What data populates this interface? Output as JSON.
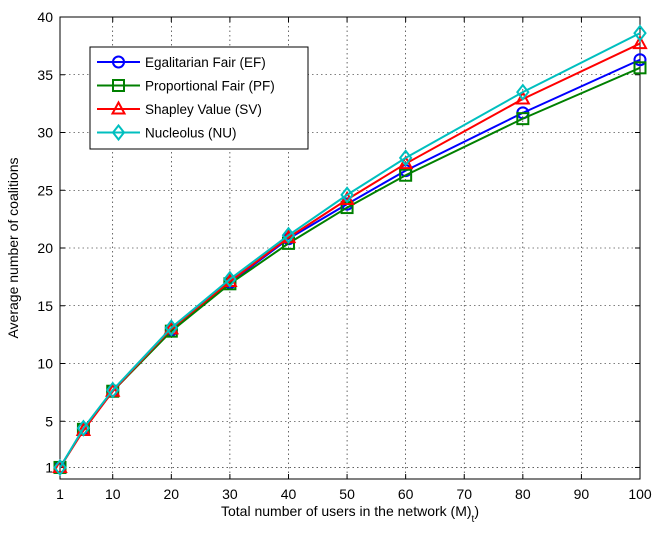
{
  "chart_data": {
    "type": "line",
    "xlabel": "Total number of users in the network (M)",
    "xlabel_subscript": "t",
    "ylabel": "Average number of coalitions",
    "xlim": [
      1,
      100
    ],
    "ylim": [
      0,
      40
    ],
    "xticks": [
      1,
      10,
      20,
      30,
      40,
      50,
      60,
      70,
      80,
      90,
      100
    ],
    "yticks": [
      1,
      5,
      10,
      15,
      20,
      25,
      30,
      35,
      40
    ],
    "grid": true,
    "legend_position": "top-left",
    "x": [
      1,
      5,
      10,
      20,
      30,
      40,
      50,
      60,
      80,
      100
    ],
    "series": [
      {
        "name": "Egalitarian Fair (EF)",
        "color": "#0000ff",
        "marker": "circle",
        "values": [
          1.0,
          4.3,
          7.6,
          12.9,
          17.0,
          20.8,
          23.8,
          26.7,
          31.7,
          36.3
        ]
      },
      {
        "name": "Proportional Fair (PF)",
        "color": "#008000",
        "marker": "square",
        "values": [
          1.0,
          4.3,
          7.6,
          12.8,
          16.9,
          20.4,
          23.5,
          26.3,
          31.2,
          35.6
        ]
      },
      {
        "name": "Shapley Value (SV)",
        "color": "#ff0000",
        "marker": "triangle",
        "values": [
          1.0,
          4.2,
          7.6,
          13.0,
          17.1,
          20.9,
          24.2,
          27.3,
          32.9,
          37.7
        ]
      },
      {
        "name": "Nucleolus (NU)",
        "color": "#00bfbf",
        "marker": "diamond",
        "values": [
          1.0,
          4.4,
          7.7,
          13.1,
          17.3,
          21.1,
          24.6,
          27.8,
          33.5,
          38.6
        ]
      }
    ]
  }
}
